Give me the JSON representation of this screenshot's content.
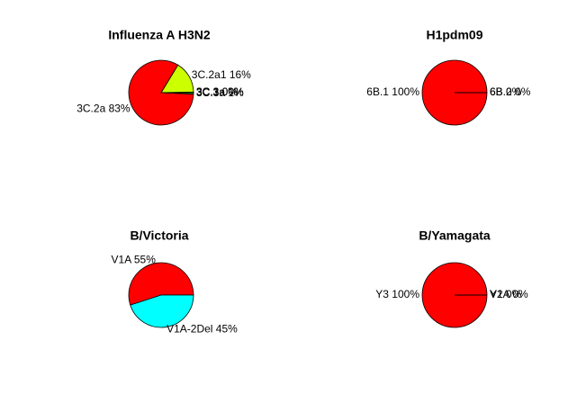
{
  "chart_data": [
    {
      "type": "pie",
      "title": "Influenza A H3N2",
      "slices": [
        {
          "label": "3C.3a 0%",
          "value": 0.3,
          "color": "#FFFF00"
        },
        {
          "label": "3C.2a1 16%",
          "value": 16,
          "color": "#CCFF00"
        },
        {
          "label": "3C.2a 83%",
          "value": 83,
          "color": "#FF0000"
        },
        {
          "label": "3C.3a 1%",
          "value": 0.7,
          "color": "#00FF00"
        },
        {
          "label": "3C.3 0%",
          "value": 0.0,
          "color": "#00FFFF"
        },
        {
          "label": "3C.1 0%",
          "value": 0.0,
          "color": "#0000FF"
        }
      ]
    },
    {
      "type": "pie",
      "title": "H1pdm09",
      "slices": [
        {
          "label": "6B.1 100%",
          "value": 100,
          "color": "#FF0000"
        },
        {
          "label": "6B 0%",
          "value": 0,
          "color": "#FFFF00"
        },
        {
          "label": "6B.2 0%",
          "value": 0,
          "color": "#00FF00"
        }
      ]
    },
    {
      "type": "pie",
      "title": "B/Victoria",
      "slices": [
        {
          "label": "V1A 55%",
          "value": 55,
          "color": "#FF0000"
        },
        {
          "label": "V1A-2Del 45%",
          "value": 45,
          "color": "#00FFFF"
        }
      ]
    },
    {
      "type": "pie",
      "title": "B/Yamagata",
      "slices": [
        {
          "label": "Y3 100%",
          "value": 100,
          "color": "#FF0000"
        },
        {
          "label": "Y2 0%",
          "value": 0,
          "color": "#FFFF00"
        },
        {
          "label": "V1A 0%",
          "value": 0,
          "color": "#00FF00"
        }
      ]
    }
  ]
}
